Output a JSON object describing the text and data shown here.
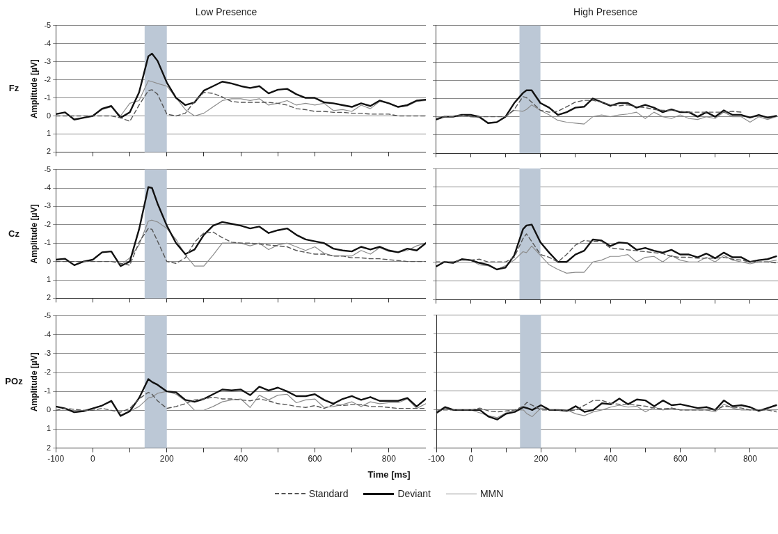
{
  "chart_data": [
    {
      "type": "line",
      "title": "Low Presence",
      "ylabel": "Amplitude [µV]",
      "annotations": [
        "Fz"
      ],
      "tick_labels": "y",
      "grid": "y",
      "legend": "bottom",
      "x": [
        -100,
        -75,
        -50,
        -25,
        0,
        25,
        50,
        75,
        100,
        125,
        150,
        160,
        175,
        200,
        225,
        250,
        275,
        300,
        325,
        350,
        375,
        400,
        425,
        450,
        475,
        500,
        525,
        550,
        575,
        600,
        625,
        650,
        675,
        700,
        725,
        750,
        775,
        800,
        825,
        850,
        875,
        900
      ],
      "xlim": [
        -100,
        900
      ],
      "xticks": [
        -100,
        0,
        {
          "value": 100,
          "label": null
        },
        200,
        {
          "value": 300,
          "label": null
        },
        400,
        {
          "value": 500,
          "label": null
        },
        600,
        {
          "value": 700,
          "label": null
        },
        800
      ],
      "ylim": [
        2,
        -5
      ],
      "yticks": [
        -5,
        -4,
        -3,
        -2,
        -1,
        0,
        1,
        2
      ],
      "bands": [
        {
          "axis": "x",
          "from": 140,
          "to": 200,
          "color": "#bcc8d6"
        }
      ],
      "series": [
        {
          "name": "Standard",
          "color": "#555555",
          "line_style": "dashed",
          "values": [
            0,
            0,
            0,
            0,
            0,
            0,
            0,
            0.1,
            0.3,
            -0.6,
            -1.4,
            -1.45,
            -1.2,
            -0.1,
            0,
            -0.15,
            -0.8,
            -1.3,
            -1.25,
            -1.05,
            -0.8,
            -0.75,
            -0.75,
            -0.75,
            -0.75,
            -0.7,
            -0.6,
            -0.4,
            -0.35,
            -0.25,
            -0.25,
            -0.2,
            -0.2,
            -0.15,
            -0.15,
            -0.1,
            -0.1,
            -0.1,
            0,
            0,
            0,
            0
          ]
        },
        {
          "name": "Deviant",
          "color": "#111111",
          "line_style": "solid",
          "values": [
            -0.1,
            -0.2,
            0.2,
            0.1,
            0,
            -0.4,
            -0.55,
            0.1,
            -0.2,
            -1.3,
            -3.3,
            -3.45,
            -3.05,
            -1.85,
            -1,
            -0.6,
            -0.75,
            -1.4,
            -1.65,
            -1.9,
            -1.8,
            -1.65,
            -1.55,
            -1.65,
            -1.25,
            -1.45,
            -1.5,
            -1.2,
            -1,
            -1,
            -0.75,
            -0.7,
            -0.6,
            -0.5,
            -0.7,
            -0.55,
            -0.85,
            -0.7,
            -0.5,
            -0.6,
            -0.85,
            -0.9
          ]
        },
        {
          "name": "MMN",
          "color": "#8c8c8c",
          "line_style": "solid",
          "values": [
            -0.1,
            -0.2,
            0.2,
            0.1,
            0,
            -0.35,
            -0.5,
            0,
            -0.7,
            -0.85,
            -1.95,
            -1.9,
            -1.8,
            -1.65,
            -1,
            -0.35,
            0,
            -0.15,
            -0.5,
            -0.85,
            -0.95,
            -0.95,
            -0.85,
            -0.95,
            -0.6,
            -0.7,
            -0.85,
            -0.6,
            -0.7,
            -0.6,
            -0.7,
            -0.3,
            -0.35,
            -0.25,
            -0.6,
            -0.4,
            -0.8,
            -0.7,
            -0.5,
            -0.55,
            -0.8,
            -0.85
          ]
        }
      ]
    },
    {
      "type": "line",
      "title": "High Presence",
      "tick_labels": false,
      "grid": "y",
      "x": [
        -100,
        -75,
        -50,
        -25,
        0,
        25,
        50,
        75,
        100,
        125,
        150,
        160,
        175,
        200,
        225,
        250,
        275,
        300,
        325,
        350,
        375,
        400,
        425,
        450,
        475,
        500,
        525,
        550,
        575,
        600,
        625,
        650,
        675,
        700,
        725,
        750,
        775,
        800,
        825,
        850,
        875
      ],
      "xlim": [
        -100,
        880
      ],
      "xticks": [
        -100,
        0,
        {
          "value": 100,
          "label": null
        },
        200,
        {
          "value": 300,
          "label": null
        },
        400,
        {
          "value": 500,
          "label": null
        },
        600,
        {
          "value": 700,
          "label": null
        },
        800
      ],
      "ylim": [
        2,
        -5
      ],
      "yticks": [
        -5,
        -4,
        -3,
        -2,
        -1,
        0,
        1,
        2
      ],
      "bands": [
        {
          "axis": "x",
          "from": 140,
          "to": 200,
          "color": "#bcc8d6"
        }
      ],
      "series": [
        {
          "color": "#555555",
          "line_style": "dashed",
          "values": [
            0.1,
            0,
            0,
            -0.1,
            0,
            0,
            0,
            0,
            0,
            -0.4,
            -1.1,
            -1.05,
            -0.8,
            -0.35,
            -0.25,
            -0.3,
            -0.55,
            -0.8,
            -0.9,
            -0.9,
            -0.8,
            -0.65,
            -0.6,
            -0.65,
            -0.55,
            -0.5,
            -0.4,
            -0.35,
            -0.35,
            -0.3,
            -0.25,
            -0.25,
            -0.25,
            -0.25,
            -0.25,
            -0.3,
            -0.25,
            null,
            null,
            null,
            null
          ]
        },
        {
          "color": "#111111",
          "line_style": "solid",
          "values": [
            0.15,
            0,
            0,
            -0.1,
            -0.1,
            0,
            0.35,
            0.3,
            0,
            -0.75,
            -1.3,
            -1.45,
            -1.45,
            -0.75,
            -0.5,
            -0.1,
            -0.25,
            -0.5,
            -0.55,
            -1,
            -0.8,
            -0.6,
            -0.75,
            -0.75,
            -0.5,
            -0.65,
            -0.5,
            -0.25,
            -0.4,
            -0.25,
            -0.25,
            0,
            -0.25,
            0,
            -0.35,
            -0.1,
            -0.1,
            0.05,
            -0.1,
            0.05,
            -0.05
          ]
        },
        {
          "color": "#8c8c8c",
          "line_style": "solid",
          "values": [
            0.2,
            0,
            0,
            -0.1,
            0,
            0.05,
            0.35,
            0.3,
            0,
            -0.35,
            -0.3,
            -0.4,
            -0.65,
            -0.35,
            -0.1,
            0.2,
            0.3,
            0.35,
            0.4,
            0,
            -0.1,
            0,
            -0.1,
            -0.15,
            -0.25,
            0.1,
            -0.25,
            0,
            0.1,
            -0.1,
            0.1,
            0.15,
            0,
            0.1,
            -0.25,
            0,
            0,
            0.3,
            0,
            0.15,
            0
          ]
        }
      ]
    },
    {
      "type": "line",
      "ylabel": "Amplitude [µV]",
      "annotations": [
        "Cz"
      ],
      "tick_labels": "y",
      "grid": "y",
      "x": [
        -100,
        -75,
        -50,
        -25,
        0,
        25,
        50,
        75,
        100,
        125,
        150,
        160,
        175,
        200,
        225,
        250,
        275,
        300,
        325,
        350,
        375,
        400,
        425,
        450,
        475,
        500,
        525,
        550,
        575,
        600,
        625,
        650,
        675,
        700,
        725,
        750,
        775,
        800,
        825,
        850,
        875,
        900
      ],
      "xlim": [
        -100,
        900
      ],
      "xticks": [
        -100,
        0,
        {
          "value": 100,
          "label": null
        },
        200,
        {
          "value": 300,
          "label": null
        },
        400,
        {
          "value": 500,
          "label": null
        },
        600,
        {
          "value": 700,
          "label": null
        },
        800
      ],
      "ylim": [
        2,
        -5
      ],
      "yticks": [
        -5,
        -4,
        -3,
        -2,
        -1,
        0,
        1,
        2
      ],
      "bands": [
        {
          "axis": "x",
          "from": 140,
          "to": 200,
          "color": "#bcc8d6"
        }
      ],
      "series": [
        {
          "color": "#555555",
          "line_style": "dashed",
          "values": [
            0,
            0,
            0,
            0,
            0,
            0,
            0,
            0.1,
            0.2,
            -1.05,
            -1.8,
            -1.75,
            -1.1,
            0,
            0.1,
            -0.2,
            -1.05,
            -1.55,
            -1.6,
            -1.3,
            -1.05,
            -1,
            -1,
            -0.95,
            -0.9,
            -0.85,
            -0.8,
            -0.6,
            -0.5,
            -0.4,
            -0.4,
            -0.3,
            -0.3,
            -0.2,
            -0.2,
            -0.15,
            -0.15,
            -0.1,
            -0.05,
            0,
            0,
            0
          ]
        },
        {
          "color": "#111111",
          "line_style": "solid",
          "values": [
            -0.1,
            -0.15,
            0.2,
            0,
            -0.1,
            -0.5,
            -0.55,
            0.25,
            0,
            -1.75,
            -4.05,
            -4,
            -3.15,
            -1.95,
            -1,
            -0.4,
            -0.65,
            -1.45,
            -1.95,
            -2.15,
            -2.05,
            -1.95,
            -1.8,
            -1.9,
            -1.55,
            -1.7,
            -1.8,
            -1.45,
            -1.2,
            -1.1,
            -1,
            -0.7,
            -0.6,
            -0.55,
            -0.8,
            -0.65,
            -0.8,
            -0.6,
            -0.5,
            -0.7,
            -0.6,
            -1
          ]
        },
        {
          "color": "#8c8c8c",
          "line_style": "solid",
          "values": [
            -0.1,
            -0.15,
            0.2,
            0,
            -0.1,
            -0.5,
            -0.55,
            0.2,
            -0.2,
            -0.9,
            -2.2,
            -2.25,
            -2.15,
            -1.8,
            -1.2,
            -0.35,
            0.25,
            0.25,
            -0.35,
            -1,
            -1,
            -1,
            -0.85,
            -1,
            -0.65,
            -0.9,
            -1,
            -0.8,
            -0.6,
            -0.8,
            -0.45,
            -0.3,
            -0.3,
            -0.3,
            -0.6,
            -0.4,
            -0.75,
            -0.55,
            -0.5,
            -0.6,
            -0.85,
            -1
          ]
        }
      ]
    },
    {
      "type": "line",
      "tick_labels": false,
      "grid": "y",
      "x": [
        -100,
        -75,
        -50,
        -25,
        0,
        25,
        50,
        75,
        100,
        125,
        150,
        160,
        175,
        200,
        225,
        250,
        275,
        300,
        325,
        350,
        375,
        400,
        425,
        450,
        475,
        500,
        525,
        550,
        575,
        600,
        625,
        650,
        675,
        700,
        725,
        750,
        775,
        800,
        825,
        850,
        875
      ],
      "xlim": [
        -100,
        880
      ],
      "xticks": [
        -100,
        0,
        {
          "value": 100,
          "label": null
        },
        200,
        {
          "value": 300,
          "label": null
        },
        400,
        {
          "value": 500,
          "label": null
        },
        600,
        {
          "value": 700,
          "label": null
        },
        800
      ],
      "ylim": [
        2,
        -5
      ],
      "yticks": [
        -5,
        -4,
        -3,
        -2,
        -1,
        0,
        1,
        2
      ],
      "bands": [
        {
          "axis": "x",
          "from": 140,
          "to": 200,
          "color": "#bcc8d6"
        }
      ],
      "series": [
        {
          "color": "#555555",
          "line_style": "dashed",
          "values": [
            0,
            0,
            0,
            -0.1,
            -0.1,
            -0.15,
            0,
            0,
            0,
            -0.25,
            -1.25,
            -1.5,
            -1.1,
            -0.4,
            -0.25,
            0,
            -0.4,
            -0.9,
            -1.15,
            -1.1,
            -1.1,
            -0.75,
            -0.7,
            -0.65,
            -0.6,
            -0.55,
            -0.5,
            -0.45,
            -0.3,
            -0.25,
            -0.25,
            -0.2,
            -0.2,
            -0.2,
            -0.25,
            -0.15,
            -0.1,
            0,
            0,
            0,
            0.05
          ]
        },
        {
          "color": "#111111",
          "line_style": "solid",
          "values": [
            0.25,
            0,
            0.05,
            -0.15,
            -0.1,
            0.05,
            0.15,
            0.4,
            0.3,
            -0.35,
            -1.75,
            -1.95,
            -2,
            -1.05,
            -0.5,
            0,
            0,
            -0.4,
            -0.6,
            -1.2,
            -1.15,
            -0.85,
            -1.05,
            -1,
            -0.65,
            -0.75,
            -0.6,
            -0.5,
            -0.65,
            -0.4,
            -0.4,
            -0.25,
            -0.45,
            -0.2,
            -0.5,
            -0.25,
            -0.25,
            0,
            -0.1,
            -0.15,
            -0.3
          ]
        },
        {
          "color": "#8c8c8c",
          "line_style": "solid",
          "values": [
            0.3,
            0,
            0,
            -0.1,
            -0.1,
            0.15,
            0.2,
            0.4,
            0.2,
            -0.1,
            -0.55,
            -0.5,
            -0.85,
            -0.35,
            0.15,
            0.4,
            0.6,
            0.55,
            0.55,
            0,
            -0.1,
            -0.3,
            -0.3,
            -0.4,
            0,
            -0.25,
            -0.3,
            0,
            -0.35,
            -0.1,
            0,
            0,
            -0.25,
            0,
            -0.35,
            -0.1,
            0,
            0.1,
            0,
            0,
            -0.1
          ]
        }
      ]
    },
    {
      "type": "line",
      "ylabel": "Amplitude [µV]",
      "xlabel": "Time [ms]",
      "annotations": [
        "POz"
      ],
      "grid": "y",
      "x": [
        -100,
        -75,
        -50,
        -25,
        0,
        25,
        50,
        75,
        100,
        125,
        150,
        160,
        175,
        200,
        225,
        250,
        275,
        300,
        325,
        350,
        375,
        400,
        425,
        450,
        475,
        500,
        525,
        550,
        575,
        600,
        625,
        650,
        675,
        700,
        725,
        750,
        775,
        800,
        825,
        850,
        875,
        900
      ],
      "xlim": [
        -100,
        900
      ],
      "xticks": [
        -100,
        0,
        {
          "value": 100,
          "label": null
        },
        200,
        {
          "value": 300,
          "label": null
        },
        400,
        {
          "value": 500,
          "label": null
        },
        600,
        {
          "value": 700,
          "label": null
        },
        800
      ],
      "ylim": [
        2,
        -5
      ],
      "yticks": [
        -5,
        -4,
        -3,
        -2,
        -1,
        0,
        1,
        2
      ],
      "bands": [
        {
          "axis": "x",
          "from": 140,
          "to": 200,
          "color": "#bcc8d6"
        }
      ],
      "series": [
        {
          "color": "#555555",
          "line_style": "dashed",
          "values": [
            0,
            -0.1,
            -0.05,
            0,
            0,
            -0.1,
            0,
            0.1,
            -0.1,
            -0.6,
            -0.95,
            -0.85,
            -0.5,
            -0.1,
            -0.2,
            -0.35,
            -0.55,
            -0.6,
            -0.7,
            -0.6,
            -0.6,
            -0.55,
            -0.5,
            -0.6,
            -0.5,
            -0.35,
            -0.3,
            -0.2,
            -0.15,
            -0.25,
            -0.1,
            -0.3,
            -0.25,
            -0.3,
            -0.3,
            -0.2,
            -0.2,
            -0.15,
            -0.1,
            -0.1,
            -0.1,
            -0.1
          ]
        },
        {
          "color": "#111111",
          "line_style": "solid",
          "values": [
            -0.2,
            -0.1,
            0.1,
            0.05,
            -0.1,
            -0.25,
            -0.5,
            0.3,
            0.05,
            -0.65,
            -1.65,
            -1.5,
            -1.35,
            -1,
            -0.95,
            -0.55,
            -0.45,
            -0.6,
            -0.85,
            -1.1,
            -1.05,
            -1.1,
            -0.8,
            -1.25,
            -1.05,
            -1.2,
            -1,
            -0.75,
            -0.75,
            -0.85,
            -0.55,
            -0.35,
            -0.6,
            -0.75,
            -0.55,
            -0.7,
            -0.5,
            -0.5,
            -0.5,
            -0.65,
            -0.2,
            -0.6
          ]
        },
        {
          "color": "#8c8c8c",
          "line_style": "solid",
          "values": [
            -0.2,
            -0.1,
            0.1,
            0.05,
            -0.1,
            -0.25,
            -0.45,
            0.25,
            0.05,
            -0.2,
            -0.65,
            -0.7,
            -0.9,
            -1,
            -0.85,
            -0.5,
            0,
            0,
            -0.2,
            -0.45,
            -0.55,
            -0.6,
            -0.15,
            -0.8,
            -0.55,
            -0.8,
            -0.85,
            -0.4,
            -0.55,
            -0.6,
            -0.15,
            -0.2,
            -0.3,
            -0.45,
            -0.2,
            -0.45,
            -0.35,
            -0.4,
            -0.4,
            -0.6,
            -0.1,
            -0.35
          ]
        }
      ]
    },
    {
      "type": "line",
      "tick_labels": "x",
      "grid": "y",
      "x": [
        -100,
        -75,
        -50,
        -25,
        0,
        25,
        50,
        75,
        100,
        125,
        150,
        160,
        175,
        200,
        225,
        250,
        275,
        300,
        325,
        350,
        375,
        400,
        425,
        450,
        475,
        500,
        525,
        550,
        575,
        600,
        625,
        650,
        675,
        700,
        725,
        750,
        775,
        800,
        825,
        850,
        875
      ],
      "xlim": [
        -100,
        880
      ],
      "xticks": [
        -100,
        0,
        {
          "value": 100,
          "label": null
        },
        200,
        {
          "value": 300,
          "label": null
        },
        400,
        {
          "value": 500,
          "label": null
        },
        600,
        {
          "value": 700,
          "label": null
        },
        800
      ],
      "ylim": [
        2,
        -5
      ],
      "yticks": [
        -5,
        -4,
        -3,
        -2,
        -1,
        0,
        1,
        2
      ],
      "bands": [
        {
          "axis": "x",
          "from": 140,
          "to": 200,
          "color": "#bcc8d6"
        }
      ],
      "series": [
        {
          "color": "#555555",
          "line_style": "dashed",
          "values": [
            0,
            0,
            0,
            0,
            0,
            -0.1,
            0.05,
            0.1,
            0.05,
            0,
            -0.2,
            -0.4,
            -0.25,
            0,
            0,
            0,
            0.05,
            0,
            -0.25,
            -0.5,
            -0.5,
            -0.35,
            -0.3,
            -0.3,
            -0.25,
            -0.2,
            -0.1,
            -0.05,
            -0.1,
            0,
            0,
            0,
            0,
            0,
            -0.2,
            -0.15,
            -0.1,
            0,
            0,
            0,
            0.1
          ]
        },
        {
          "color": "#111111",
          "line_style": "solid",
          "values": [
            0.15,
            -0.15,
            0,
            0,
            0,
            0,
            0.35,
            0.5,
            0.2,
            0.1,
            -0.15,
            -0.1,
            0,
            -0.25,
            0,
            0,
            0.05,
            -0.2,
            0.1,
            0,
            -0.35,
            -0.3,
            -0.6,
            -0.3,
            -0.55,
            -0.5,
            -0.2,
            -0.5,
            -0.25,
            -0.3,
            -0.2,
            -0.1,
            -0.15,
            0,
            -0.5,
            -0.2,
            -0.25,
            -0.15,
            0.05,
            -0.1,
            -0.25
          ]
        },
        {
          "color": "#8c8c8c",
          "line_style": "solid",
          "values": [
            0.2,
            -0.1,
            0,
            0,
            0,
            0.15,
            0.3,
            0.4,
            0.15,
            0,
            0,
            0.2,
            0.35,
            -0.1,
            0,
            0,
            0,
            0.2,
            0.3,
            0.1,
            0,
            -0.15,
            -0.25,
            -0.15,
            -0.2,
            0.1,
            -0.15,
            0,
            -0.1,
            0,
            0,
            0,
            0,
            0.1,
            -0.3,
            -0.1,
            0,
            0,
            0,
            0,
            0
          ]
        }
      ]
    }
  ]
}
